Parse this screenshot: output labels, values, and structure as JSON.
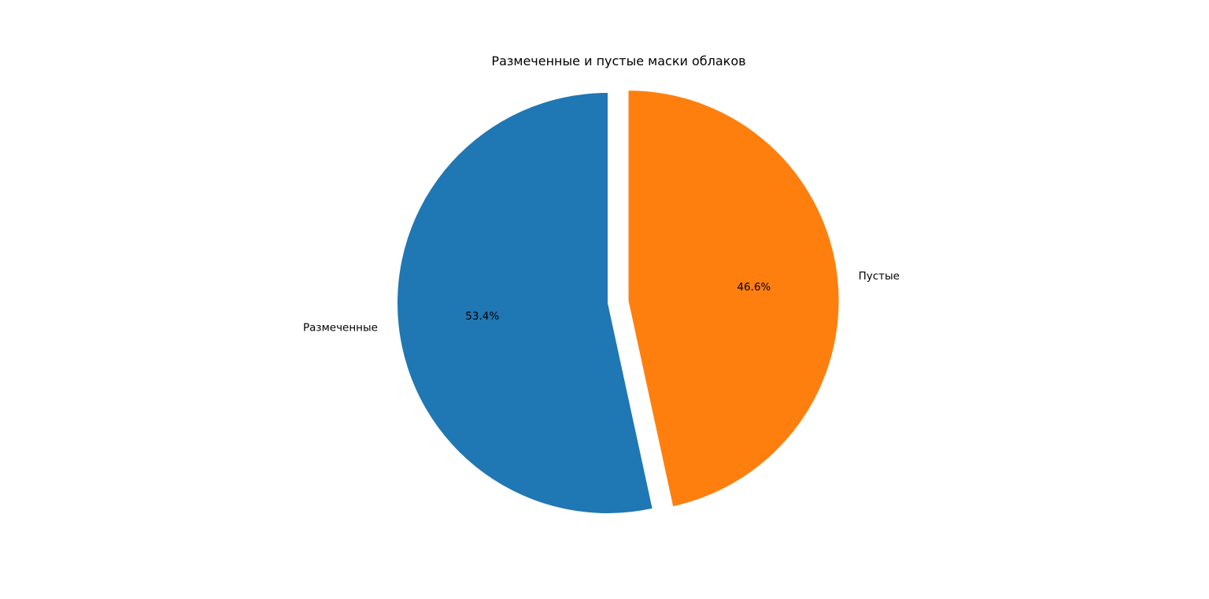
{
  "chart_data": {
    "type": "pie",
    "title": "Размеченные и пустые маски облаков",
    "start_angle_deg": 90,
    "direction": "counterclockwise",
    "slices": [
      {
        "label": "Размеченные",
        "value": 53.4,
        "pct_label": "53.4%",
        "color": "#1f77b4",
        "explode": 0.0
      },
      {
        "label": "Пустые",
        "value": 46.6,
        "pct_label": "46.6%",
        "color": "#ff7f0e",
        "explode": 0.1
      }
    ]
  }
}
